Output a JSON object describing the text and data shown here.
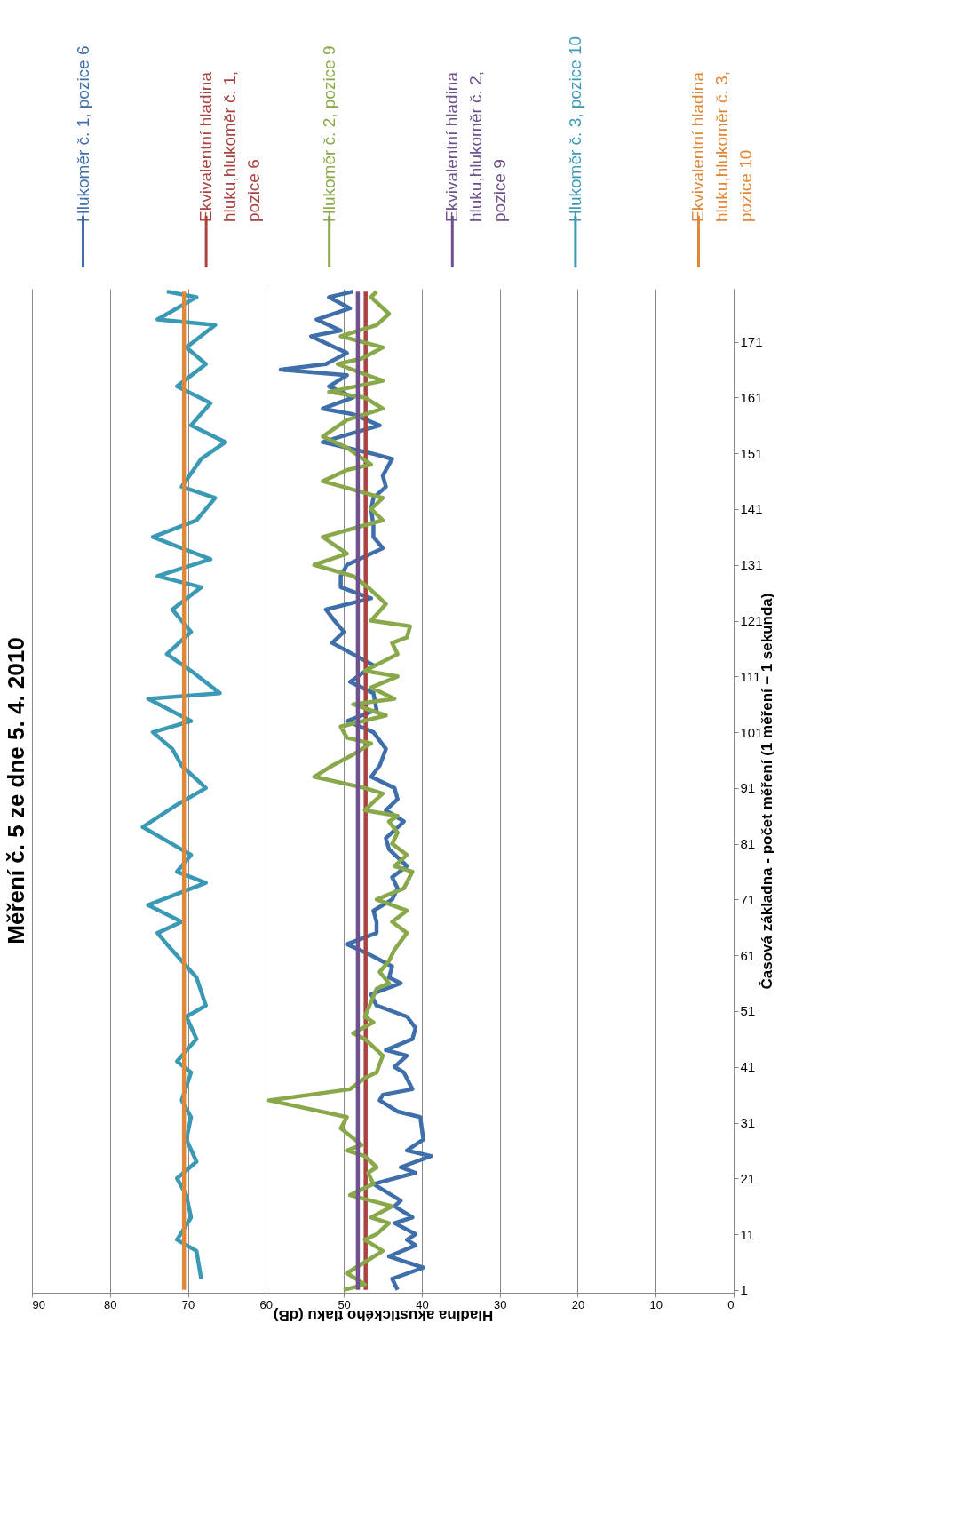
{
  "chart_data": {
    "type": "line",
    "title": "Měření č. 5 ze dne 5. 4. 2010",
    "xlabel": "Hladina akustického tlaku (dB)",
    "ylabel": "Časová základna - počet měření (1 měření – 1 sekunda)",
    "orientation": "horizontal",
    "ylim": [
      0.5,
      180.5
    ],
    "yticks": [
      1,
      11,
      21,
      31,
      41,
      51,
      61,
      71,
      81,
      91,
      101,
      111,
      121,
      131,
      141,
      151,
      161,
      171
    ],
    "xlim": [
      90,
      0
    ],
    "xticks": [
      90,
      80,
      70,
      60,
      50,
      40,
      30,
      20,
      10,
      0
    ],
    "grid": "x",
    "legend": "top",
    "line_style": "solid",
    "series": [
      {
        "name": "Hlukoměr č. 1, pozice 6",
        "color": "#3f6faa",
        "x": [
          1,
          3,
          5,
          7,
          9,
          10,
          11,
          13,
          14,
          16,
          17,
          20,
          22,
          23,
          25,
          26,
          28,
          30,
          32,
          33,
          35,
          36,
          37,
          40,
          41,
          43,
          44,
          46,
          48,
          50,
          52,
          54,
          56,
          57,
          59,
          61,
          63,
          65,
          67,
          69,
          71,
          73,
          75,
          77,
          80,
          82,
          85,
          87,
          89,
          91,
          93,
          95,
          98,
          101,
          103,
          105,
          108,
          110,
          113,
          117,
          119,
          121,
          123,
          125,
          127,
          129,
          131,
          134,
          136,
          138,
          141,
          143,
          145,
          147,
          150,
          151,
          153,
          154,
          156,
          158,
          159,
          161,
          163,
          165,
          166,
          167,
          169,
          172,
          173,
          175,
          177,
          179,
          180
        ],
        "values": [
          43.1,
          43.8,
          39.8,
          44.2,
          40.8,
          41.9,
          40.8,
          43.5,
          41.2,
          43.5,
          42.7,
          46.2,
          40.8,
          42.7,
          38.8,
          41.9,
          39.8,
          40.0,
          40.2,
          43.1,
          45.4,
          45.0,
          41.2,
          42.3,
          43.5,
          41.9,
          44.6,
          41.2,
          40.8,
          41.9,
          45.8,
          46.5,
          42.7,
          44.2,
          43.8,
          46.5,
          49.6,
          45.8,
          45.8,
          46.2,
          43.8,
          43.1,
          43.8,
          41.9,
          44.2,
          44.6,
          42.3,
          44.6,
          43.1,
          43.5,
          46.5,
          45.4,
          44.6,
          46.2,
          49.6,
          45.8,
          46.2,
          49.2,
          46.2,
          51.5,
          50.0,
          51.2,
          52.3,
          46.5,
          50.4,
          50.4,
          49.6,
          45.0,
          46.2,
          46.2,
          46.5,
          46.2,
          44.6,
          45.0,
          43.8,
          46.5,
          52.7,
          50.4,
          45.4,
          48.8,
          52.7,
          48.8,
          51.9,
          49.6,
          58.1,
          52.3,
          49.6,
          54.2,
          50.4,
          53.5,
          49.2,
          51.9,
          48.8
        ]
      },
      {
        "name": "Ekvivalentní hladina hluku,hlukoměr č. 1, pozice 6",
        "color": "#a94442",
        "x": [
          1,
          180
        ],
        "values": [
          47.2,
          47.2
        ]
      },
      {
        "name": "Hlukoměr č. 2, pozice 9",
        "color": "#88a84a",
        "x": [
          1,
          2,
          4,
          6,
          8,
          10,
          11,
          13,
          14,
          16,
          18,
          20,
          22,
          23,
          25,
          26,
          27,
          30,
          32,
          35,
          37,
          39,
          40,
          43,
          46,
          47,
          49,
          50,
          55,
          56,
          58,
          60,
          62,
          65,
          67,
          69,
          71,
          73,
          76,
          77,
          79,
          81,
          83,
          85,
          86,
          87,
          89,
          90,
          91,
          93,
          95,
          97,
          99,
          100,
          102,
          104,
          106,
          107,
          109,
          111,
          112,
          115,
          117,
          118,
          120,
          121,
          124,
          127,
          129,
          131,
          133,
          136,
          139,
          141,
          143,
          146,
          148,
          149,
          152,
          154,
          157,
          159,
          161,
          162,
          164,
          167,
          168,
          170,
          172,
          174,
          176,
          179,
          180
        ],
        "values": [
          50.0,
          47.3,
          49.6,
          47.3,
          45.0,
          47.3,
          45.8,
          44.2,
          46.5,
          43.8,
          49.2,
          46.2,
          46.9,
          45.8,
          47.3,
          49.6,
          47.7,
          50.4,
          49.6,
          59.6,
          49.2,
          47.3,
          45.8,
          45.0,
          47.3,
          48.8,
          46.2,
          47.3,
          45.8,
          44.2,
          45.4,
          44.2,
          43.5,
          41.9,
          43.8,
          41.9,
          45.8,
          42.3,
          41.2,
          43.5,
          41.9,
          43.8,
          43.1,
          44.2,
          43.1,
          47.3,
          45.8,
          45.0,
          47.3,
          53.8,
          51.5,
          48.8,
          46.5,
          49.6,
          50.4,
          44.6,
          48.8,
          43.5,
          46.5,
          43.1,
          47.3,
          43.1,
          43.8,
          41.9,
          41.5,
          46.5,
          44.6,
          46.9,
          48.8,
          53.8,
          49.6,
          52.7,
          45.0,
          46.5,
          45.0,
          52.7,
          49.6,
          46.5,
          49.6,
          52.7,
          49.6,
          45.0,
          47.3,
          51.9,
          45.0,
          50.8,
          47.7,
          45.0,
          50.4,
          45.8,
          44.2,
          46.5,
          45.8
        ]
      },
      {
        "name": "Ekvivalentní hladina hluku,hlukoměr č. 2, pozice 9",
        "color": "#6f528c",
        "x": [
          1,
          180
        ],
        "values": [
          48.2,
          48.2
        ]
      },
      {
        "name": "Hlukoměr č. 3, pozice 10",
        "color": "#3a9ab5",
        "x": [
          3,
          8,
          10,
          14,
          18,
          21,
          24,
          28,
          32,
          35,
          40,
          42,
          46,
          50,
          52,
          57,
          60,
          63,
          65,
          67,
          70,
          74,
          76,
          79,
          82,
          84,
          88,
          91,
          95,
          98,
          101,
          103,
          107,
          108,
          112,
          115,
          119,
          123,
          127,
          129,
          132,
          136,
          139,
          143,
          145,
          150,
          153,
          156,
          160,
          163,
          167,
          170,
          174,
          175,
          179,
          180
        ],
        "values": [
          68.3,
          68.9,
          71.4,
          69.6,
          70.2,
          71.4,
          68.9,
          70.2,
          69.6,
          70.8,
          69.6,
          71.4,
          68.9,
          70.2,
          67.7,
          68.9,
          70.8,
          72.7,
          73.9,
          70.8,
          75.1,
          67.7,
          71.4,
          69.6,
          73.3,
          75.8,
          71.4,
          67.7,
          70.8,
          72.0,
          74.5,
          69.6,
          75.1,
          65.9,
          69.6,
          72.7,
          69.6,
          72.0,
          68.3,
          73.9,
          67.1,
          74.5,
          68.9,
          66.5,
          70.8,
          68.3,
          65.2,
          69.6,
          67.1,
          71.4,
          67.7,
          70.2,
          66.5,
          73.9,
          68.9,
          72.7
        ]
      },
      {
        "name": "Ekvivalentní hladina hluku,hlukoměr č. 3, pozice 10",
        "color": "#e0883a",
        "x": [
          1,
          180
        ],
        "values": [
          70.5,
          70.5
        ]
      }
    ]
  }
}
